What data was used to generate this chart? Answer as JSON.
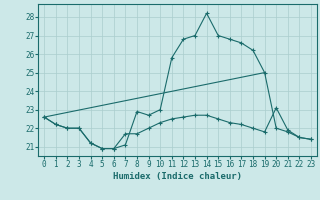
{
  "xlabel": "Humidex (Indice chaleur)",
  "background_color": "#cce8e8",
  "grid_color": "#aacece",
  "line_color": "#1a6b6b",
  "x_ticks": [
    0,
    1,
    2,
    3,
    4,
    5,
    6,
    7,
    8,
    9,
    10,
    11,
    12,
    13,
    14,
    15,
    16,
    17,
    18,
    19,
    20,
    21,
    22,
    23
  ],
  "y_ticks": [
    21,
    22,
    23,
    24,
    25,
    26,
    27,
    28
  ],
  "ylim": [
    20.5,
    28.7
  ],
  "xlim": [
    -0.5,
    23.5
  ],
  "series_peak": {
    "x": [
      0,
      1,
      2,
      3,
      4,
      5,
      6,
      7,
      8,
      9,
      10,
      11,
      12,
      13,
      14,
      15,
      16,
      17,
      18,
      19,
      20,
      21,
      22,
      23
    ],
    "y": [
      22.6,
      22.2,
      22.0,
      22.0,
      21.2,
      20.9,
      20.9,
      21.1,
      22.9,
      22.7,
      23.0,
      25.8,
      26.8,
      27.0,
      28.2,
      27.0,
      26.8,
      26.6,
      26.2,
      25.0,
      22.0,
      21.8,
      21.5,
      21.4
    ]
  },
  "series_flat": {
    "x": [
      0,
      1,
      2,
      3,
      4,
      5,
      6,
      7,
      8,
      9,
      10,
      11,
      12,
      13,
      14,
      15,
      16,
      17,
      18,
      19,
      20,
      21,
      22,
      23
    ],
    "y": [
      22.6,
      22.2,
      22.0,
      22.0,
      21.2,
      20.9,
      20.9,
      21.7,
      21.7,
      22.0,
      22.3,
      22.5,
      22.6,
      22.7,
      22.7,
      22.5,
      22.3,
      22.2,
      22.0,
      21.8,
      23.1,
      21.9,
      21.5,
      21.4
    ]
  },
  "series_line": {
    "x": [
      0,
      19
    ],
    "y": [
      22.6,
      25.0
    ]
  }
}
